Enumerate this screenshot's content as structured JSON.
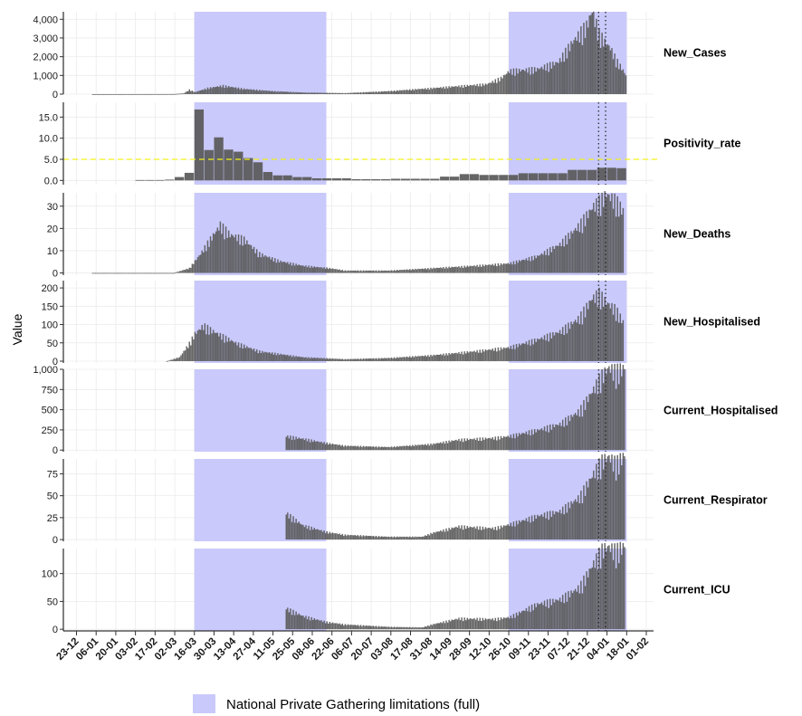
{
  "chart_data": {
    "type": "bar",
    "ylabel": "Value",
    "x_tick_labels": [
      "23-12",
      "06-01",
      "20-01",
      "03-02",
      "17-02",
      "02-03",
      "16-03",
      "30-03",
      "13-04",
      "27-04",
      "11-05",
      "25-05",
      "08-06",
      "22-06",
      "06-07",
      "20-07",
      "03-08",
      "17-08",
      "31-08",
      "14-09",
      "28-09",
      "12-10",
      "26-10",
      "09-11",
      "23-11",
      "07-12",
      "21-12",
      "04-01",
      "18-01",
      "01-02"
    ],
    "legend": {
      "label": "National Private Gathering limitations (full)",
      "color": "#c9c9fb"
    },
    "colors": {
      "bar": "#595959",
      "band": "#c9c9fb",
      "reference_line": "#f2f21b",
      "grid": "#ebebeb"
    },
    "shaded_periods": [
      [
        "16-03",
        "18-06"
      ],
      [
        "26-10",
        "18-01"
      ]
    ],
    "vertical_dotted_lines": [
      "29-12",
      "03-01"
    ],
    "panels": [
      {
        "name": "New_Cases",
        "ylim": [
          0,
          4400
        ],
        "y_ticks": [
          0,
          1000,
          2000,
          3000,
          4000
        ],
        "y_tick_labels": [
          "0",
          "1,000",
          "2,000",
          "3,000",
          "4,000"
        ],
        "start": "03-01",
        "points": [
          [
            "03-01",
            0
          ],
          [
            "01-03",
            5
          ],
          [
            "08-03",
            40
          ],
          [
            "12-03",
            220
          ],
          [
            "16-03",
            100
          ],
          [
            "25-03",
            300
          ],
          [
            "05-04",
            420
          ],
          [
            "20-04",
            260
          ],
          [
            "10-05",
            150
          ],
          [
            "01-06",
            80
          ],
          [
            "01-07",
            50
          ],
          [
            "01-08",
            150
          ],
          [
            "01-09",
            300
          ],
          [
            "20-09",
            400
          ],
          [
            "10-10",
            500
          ],
          [
            "20-10",
            800
          ],
          [
            "26-10",
            1150
          ],
          [
            "15-11",
            1250
          ],
          [
            "30-11",
            1600
          ],
          [
            "10-12",
            2600
          ],
          [
            "20-12",
            3400
          ],
          [
            "24-12",
            4150
          ],
          [
            "29-12",
            3000
          ],
          [
            "02-01",
            2600
          ],
          [
            "06-01",
            2300
          ],
          [
            "10-01",
            1700
          ],
          [
            "14-01",
            1300
          ],
          [
            "17-01",
            950
          ]
        ]
      },
      {
        "name": "Positivity_rate",
        "ylim": [
          -1,
          18.5
        ],
        "y_ticks": [
          0,
          5,
          10,
          15
        ],
        "y_tick_labels": [
          "0.0",
          "5.0",
          "10.0",
          "15.0"
        ],
        "reference_line": 5,
        "start": "03-02",
        "bin_days": 7,
        "points": [
          [
            "03-02",
            0.1
          ],
          [
            "17-02",
            0.2
          ],
          [
            "24-02",
            0.8
          ],
          [
            "02-03",
            1.8
          ],
          [
            "09-03",
            4.5
          ],
          [
            "13-03",
            16.8
          ],
          [
            "16-03",
            7.2
          ],
          [
            "23-03",
            7.2
          ],
          [
            "26-03",
            10.2
          ],
          [
            "30-03",
            7.3
          ],
          [
            "06-04",
            6.8
          ],
          [
            "13-04",
            5.3
          ],
          [
            "20-04",
            4.3
          ],
          [
            "27-04",
            2.0
          ],
          [
            "04-05",
            1.2
          ],
          [
            "18-05",
            0.8
          ],
          [
            "01-06",
            0.5
          ],
          [
            "01-07",
            0.3
          ],
          [
            "01-08",
            0.4
          ],
          [
            "01-09",
            0.9
          ],
          [
            "14-09",
            1.5
          ],
          [
            "01-10",
            1.3
          ],
          [
            "26-10",
            1.7
          ],
          [
            "01-12",
            2.5
          ],
          [
            "21-12",
            3.0
          ],
          [
            "04-01",
            2.9
          ],
          [
            "14-01",
            2.5
          ]
        ]
      },
      {
        "name": "New_Deaths",
        "ylim": [
          -1,
          36
        ],
        "y_ticks": [
          0,
          10,
          20,
          30
        ],
        "y_tick_labels": [
          "0",
          "10",
          "20",
          "30"
        ],
        "start": "03-01",
        "points": [
          [
            "03-01",
            0
          ],
          [
            "01-03",
            0
          ],
          [
            "12-03",
            2
          ],
          [
            "20-03",
            8
          ],
          [
            "28-03",
            15
          ],
          [
            "03-04",
            20
          ],
          [
            "10-04",
            16
          ],
          [
            "20-04",
            14
          ],
          [
            "01-05",
            8
          ],
          [
            "15-05",
            5
          ],
          [
            "01-06",
            3
          ],
          [
            "20-06",
            2
          ],
          [
            "01-07",
            1
          ],
          [
            "01-08",
            1
          ],
          [
            "01-09",
            2
          ],
          [
            "01-10",
            3
          ],
          [
            "26-10",
            4
          ],
          [
            "15-11",
            7
          ],
          [
            "01-12",
            12
          ],
          [
            "15-12",
            20
          ],
          [
            "25-12",
            28
          ],
          [
            "30-12",
            30
          ],
          [
            "03-01",
            33
          ],
          [
            "10-01",
            30
          ],
          [
            "15-01",
            26
          ]
        ]
      },
      {
        "name": "New_Hospitalised",
        "ylim": [
          -5,
          220
        ],
        "y_ticks": [
          0,
          50,
          100,
          150,
          200
        ],
        "y_tick_labels": [
          "0",
          "50",
          "100",
          "150",
          "200"
        ],
        "start": "25-02",
        "points": [
          [
            "25-02",
            0
          ],
          [
            "05-03",
            10
          ],
          [
            "12-03",
            45
          ],
          [
            "16-03",
            70
          ],
          [
            "22-03",
            90
          ],
          [
            "01-04",
            70
          ],
          [
            "15-04",
            45
          ],
          [
            "01-05",
            25
          ],
          [
            "01-06",
            10
          ],
          [
            "01-07",
            5
          ],
          [
            "01-08",
            8
          ],
          [
            "01-09",
            15
          ],
          [
            "01-10",
            25
          ],
          [
            "26-10",
            35
          ],
          [
            "15-11",
            55
          ],
          [
            "01-12",
            75
          ],
          [
            "15-12",
            110
          ],
          [
            "24-12",
            160
          ],
          [
            "29-12",
            170
          ],
          [
            "03-01",
            150
          ],
          [
            "10-01",
            130
          ],
          [
            "15-01",
            100
          ]
        ]
      },
      {
        "name": "Current_Hospitalised",
        "ylim": [
          -20,
          1000
        ],
        "y_ticks": [
          0,
          250,
          500,
          750,
          1000
        ],
        "y_tick_labels": [
          "0",
          "250",
          "500",
          "750",
          "1,000"
        ],
        "start": "20-05",
        "points": [
          [
            "20-05",
            160
          ],
          [
            "01-06",
            130
          ],
          [
            "18-06",
            80
          ],
          [
            "01-07",
            50
          ],
          [
            "01-08",
            35
          ],
          [
            "01-09",
            70
          ],
          [
            "20-09",
            120
          ],
          [
            "15-10",
            140
          ],
          [
            "26-10",
            160
          ],
          [
            "15-11",
            230
          ],
          [
            "01-12",
            300
          ],
          [
            "15-12",
            450
          ],
          [
            "25-12",
            700
          ],
          [
            "01-01",
            880
          ],
          [
            "05-01",
            950
          ],
          [
            "10-01",
            900
          ],
          [
            "16-01",
            950
          ]
        ]
      },
      {
        "name": "Current_Respirator",
        "ylim": [
          -2,
          92
        ],
        "y_ticks": [
          0,
          25,
          50,
          75
        ],
        "y_tick_labels": [
          "0",
          "25",
          "50",
          "75"
        ],
        "start": "20-05",
        "points": [
          [
            "20-05",
            28
          ],
          [
            "01-06",
            15
          ],
          [
            "18-06",
            8
          ],
          [
            "01-07",
            5
          ],
          [
            "01-08",
            3
          ],
          [
            "25-08",
            3
          ],
          [
            "01-09",
            7
          ],
          [
            "20-09",
            14
          ],
          [
            "15-10",
            12
          ],
          [
            "26-10",
            16
          ],
          [
            "15-11",
            25
          ],
          [
            "01-12",
            30
          ],
          [
            "15-12",
            45
          ],
          [
            "25-12",
            70
          ],
          [
            "01-01",
            85
          ],
          [
            "05-01",
            88
          ],
          [
            "10-01",
            80
          ],
          [
            "16-01",
            90
          ]
        ]
      },
      {
        "name": "Current_ICU",
        "ylim": [
          -3,
          145
        ],
        "y_ticks": [
          0,
          50,
          100
        ],
        "y_tick_labels": [
          "0",
          "50",
          "100"
        ],
        "start": "20-05",
        "points": [
          [
            "20-05",
            35
          ],
          [
            "01-06",
            22
          ],
          [
            "18-06",
            12
          ],
          [
            "01-07",
            8
          ],
          [
            "01-08",
            4
          ],
          [
            "25-08",
            3
          ],
          [
            "01-09",
            8
          ],
          [
            "20-09",
            18
          ],
          [
            "15-10",
            17
          ],
          [
            "26-10",
            20
          ],
          [
            "15-11",
            42
          ],
          [
            "01-12",
            50
          ],
          [
            "15-12",
            70
          ],
          [
            "25-12",
            110
          ],
          [
            "01-01",
            135
          ],
          [
            "05-01",
            138
          ],
          [
            "10-01",
            130
          ],
          [
            "16-01",
            140
          ]
        ]
      }
    ]
  }
}
